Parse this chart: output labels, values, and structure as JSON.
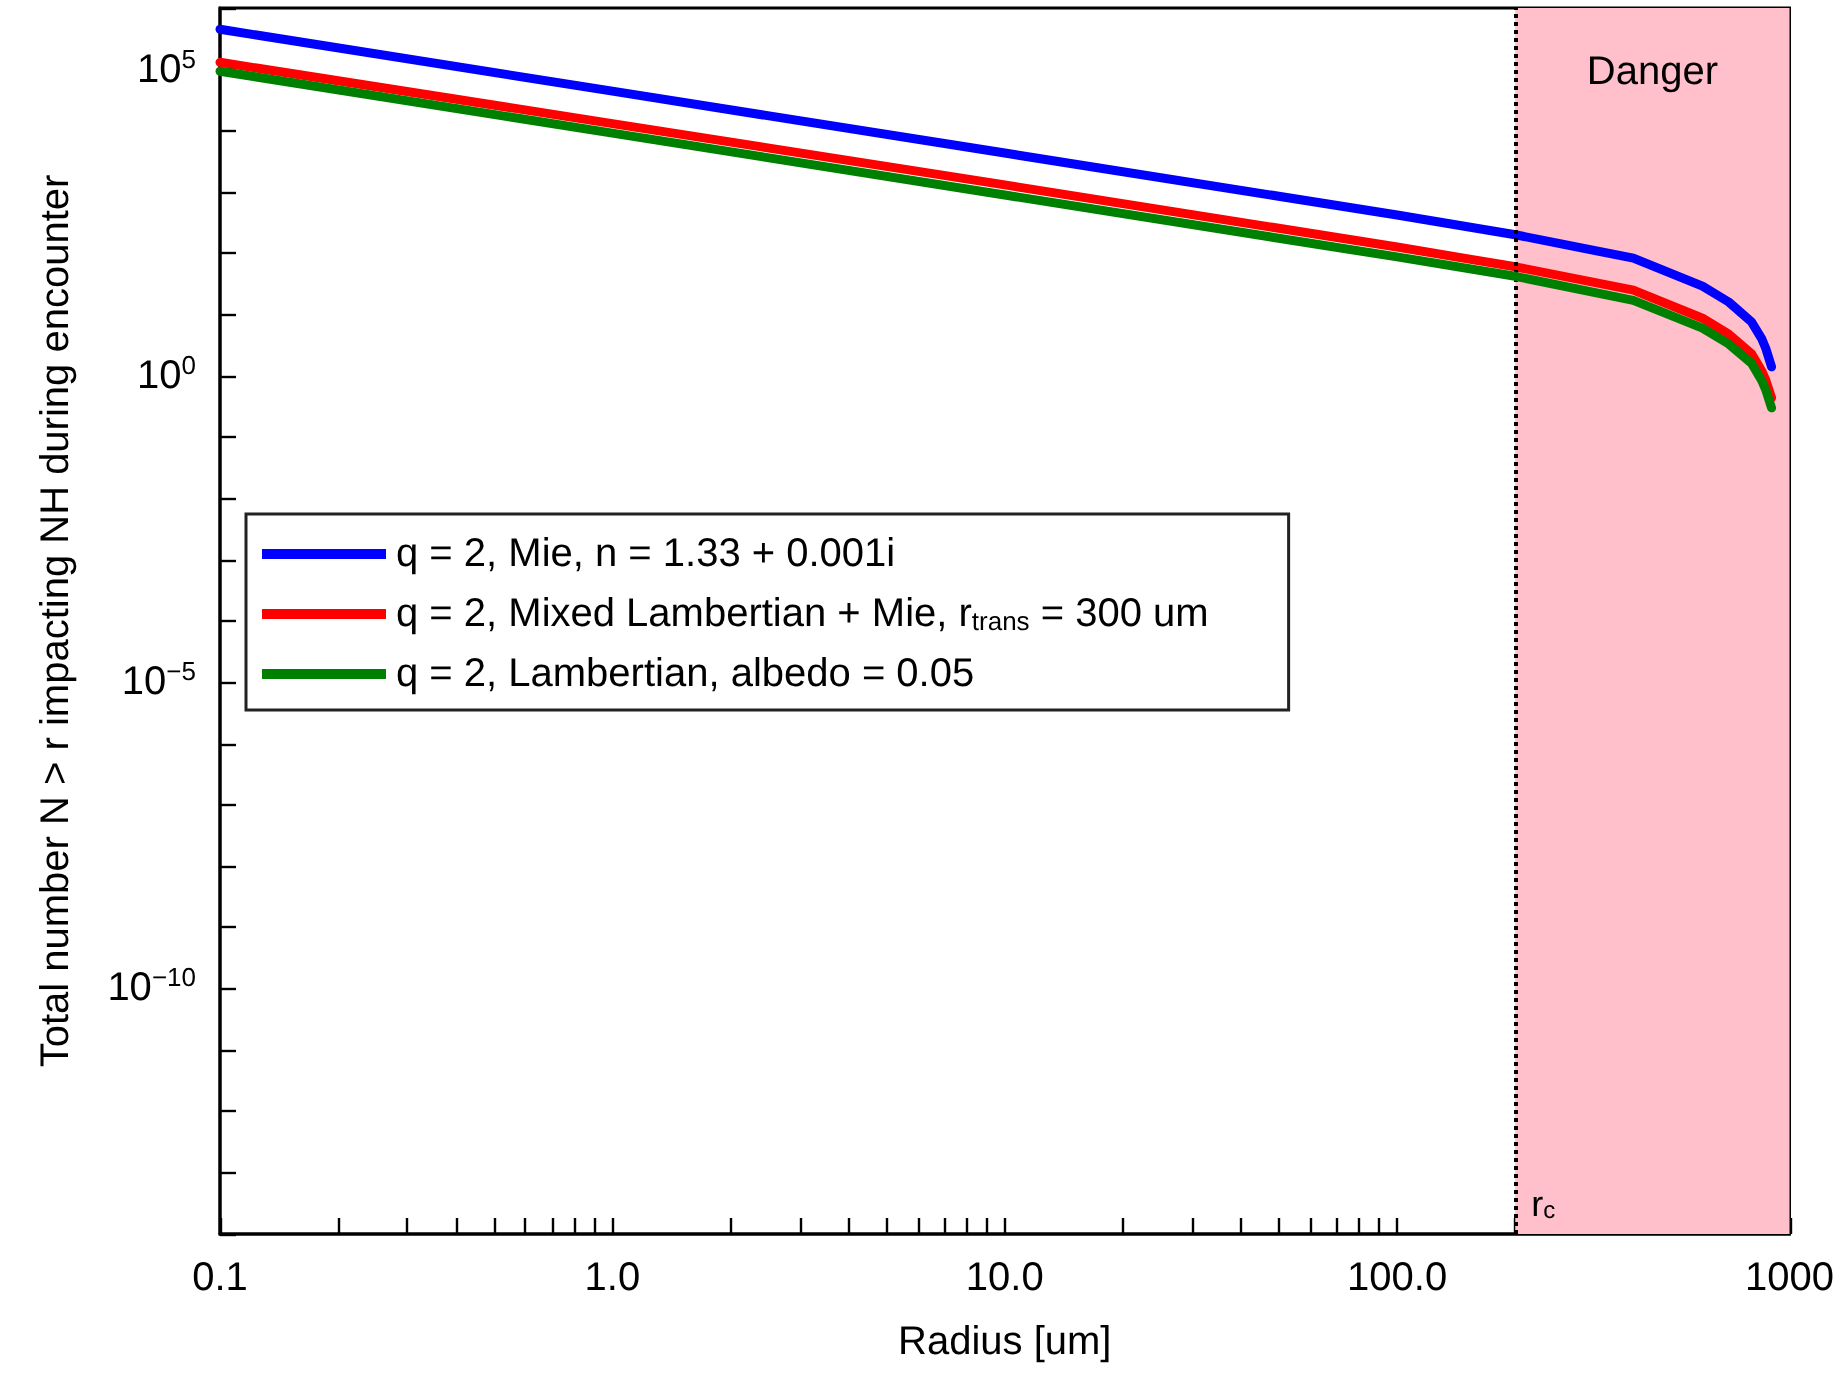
{
  "chart_data": {
    "type": "line",
    "xlabel": "Radius [um]",
    "ylabel": "Total number N > r impacting NH during encounter",
    "x": [
      0.1,
      1,
      10,
      100,
      200,
      400,
      600,
      700,
      800,
      850,
      870,
      900
    ],
    "series": [
      {
        "name": "q = 2, Mie, n = 1.33 + 0.001i",
        "color": "#0000ff",
        "values": [
          450000,
          44000,
          4300,
          420,
          200,
          83,
          29,
          16,
          7.6,
          4.0,
          2.8,
          1.4
        ]
      },
      {
        "name": "q = 2, Mixed Lambertian + Mie, r$_{trans}$ = 300 um",
        "color": "#ff0000",
        "values": [
          130000,
          13000,
          1300,
          126,
          60,
          25,
          8.7,
          4.8,
          2.3,
          1.2,
          0.85,
          0.44
        ]
      },
      {
        "name": "q = 2, Lambertian, albedo = 0.05",
        "color": "#008000",
        "values": [
          93000,
          9100,
          890,
          87,
          42,
          17,
          6.0,
          3.3,
          1.6,
          0.83,
          0.59,
          0.3
        ]
      }
    ],
    "log": "xy",
    "xlim": [
      0.1,
      1000
    ],
    "ylim": [
      1e-14,
      1000000.0
    ],
    "xticks": [
      {
        "value": 0.1,
        "label": "0.1"
      },
      {
        "value": 0.2,
        "label": null
      },
      {
        "value": 0.3,
        "label": null
      },
      {
        "value": 0.4,
        "label": null
      },
      {
        "value": 0.5,
        "label": null
      },
      {
        "value": 0.6,
        "label": null
      },
      {
        "value": 0.7,
        "label": null
      },
      {
        "value": 0.8,
        "label": null
      },
      {
        "value": 0.9,
        "label": null
      },
      {
        "value": 1,
        "label": "1.0"
      },
      {
        "value": 2,
        "label": null
      },
      {
        "value": 3,
        "label": null
      },
      {
        "value": 4,
        "label": null
      },
      {
        "value": 5,
        "label": null
      },
      {
        "value": 6,
        "label": null
      },
      {
        "value": 7,
        "label": null
      },
      {
        "value": 8,
        "label": null
      },
      {
        "value": 9,
        "label": null
      },
      {
        "value": 10,
        "label": "10.0"
      },
      {
        "value": 20,
        "label": null
      },
      {
        "value": 30,
        "label": null
      },
      {
        "value": 40,
        "label": null
      },
      {
        "value": 50,
        "label": null
      },
      {
        "value": 60,
        "label": null
      },
      {
        "value": 70,
        "label": null
      },
      {
        "value": 80,
        "label": null
      },
      {
        "value": 90,
        "label": null
      },
      {
        "value": 100,
        "label": "100.0"
      },
      {
        "value": 200,
        "label": null
      },
      {
        "value": 300,
        "label": null
      },
      {
        "value": 400,
        "label": null
      },
      {
        "value": 500,
        "label": null
      },
      {
        "value": 600,
        "label": null
      },
      {
        "value": 700,
        "label": null
      },
      {
        "value": 800,
        "label": null
      },
      {
        "value": 900,
        "label": null
      },
      {
        "value": 1000,
        "label": "1000"
      }
    ],
    "yticks": [
      {
        "value": 1e-14,
        "label": null
      },
      {
        "value": 1e-13,
        "label": null
      },
      {
        "value": 1e-12,
        "label": null
      },
      {
        "value": 1e-11,
        "label": null
      },
      {
        "value": 1e-10,
        "label": "10$^{−10}$"
      },
      {
        "value": 1e-09,
        "label": null
      },
      {
        "value": 1e-08,
        "label": null
      },
      {
        "value": 1e-07,
        "label": null
      },
      {
        "value": 1e-06,
        "label": null
      },
      {
        "value": 1e-05,
        "label": "10$^{−5}$"
      },
      {
        "value": 0.0001,
        "label": null
      },
      {
        "value": 0.001,
        "label": null
      },
      {
        "value": 0.01,
        "label": null
      },
      {
        "value": 0.1,
        "label": null
      },
      {
        "value": 1,
        "label": "10$^{0}$"
      },
      {
        "value": 10,
        "label": null
      },
      {
        "value": 100,
        "label": null
      },
      {
        "value": 1000,
        "label": null
      },
      {
        "value": 10000,
        "label": null
      },
      {
        "value": 100000,
        "label": "10$^{5}$"
      },
      {
        "value": 1000000,
        "label": null
      }
    ],
    "grid": false,
    "legend": "left",
    "marker": "none",
    "line_style": "solid",
    "ref_lines": [
      {
        "axis": "x",
        "value": 200,
        "label": "r$_{c}$",
        "line_style": "dotted",
        "color": "#000000"
      }
    ],
    "bands": [
      {
        "axis": "x",
        "from": 200,
        "to": 1000,
        "label": "Danger",
        "color": "#ffc0cb"
      }
    ]
  }
}
